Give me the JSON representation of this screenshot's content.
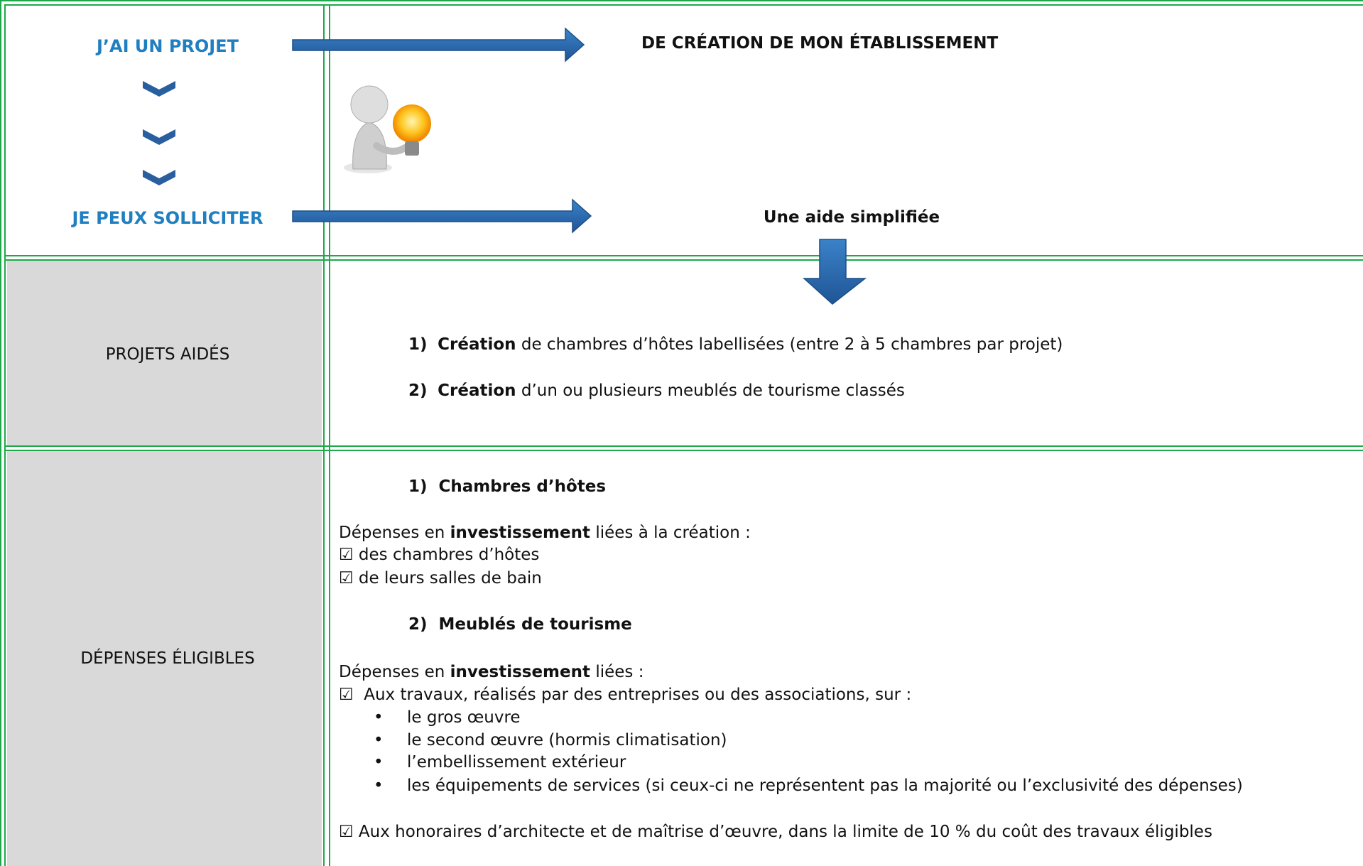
{
  "header": {
    "project_label": "J’AI UN PROJET",
    "project_text": "DE CRÉATION DE MON ÉTABLISSEMENT",
    "request_label": "JE PEUX SOLLICITER",
    "request_text": "Une aide simplifiée"
  },
  "projets_aides": {
    "label": "PROJETS AIDÉS",
    "items": [
      {
        "number": "1)",
        "keyword": "Création",
        "text": "de chambres d’hôtes labellisées (entre 2 à 5 chambres par projet)"
      },
      {
        "number": "2)",
        "keyword": "Création",
        "text": "d’un ou plusieurs meublés de tourisme classés"
      }
    ]
  },
  "depenses_eligibles": {
    "label": "DÉPENSES ÉLIGIBLES",
    "sections": [
      {
        "number": "1)",
        "title": "Chambres d’hôtes",
        "intro_start": "Dépenses en",
        "intro_bold": "investissement",
        "intro_end": "liées à la création :",
        "checks": [
          "☑ des chambres d’hôtes",
          "☑ de leurs salles de bain"
        ]
      },
      {
        "number": "2)",
        "title": "Meublés de tourisme",
        "intro_start": "Dépenses en",
        "intro_bold": "investissement",
        "intro_end": "liées :",
        "checks": [
          "☑  Aux travaux, réalisés par des entreprises ou des associations, sur :",
          "☑ Aux honoraires d’architecte et de maîtrise d’œuvre, dans la limite de 10 % du coût des travaux éligibles"
        ],
        "bullets": [
          "le gros œuvre",
          "le second œuvre (hormis climatisation)",
          "l’embellissement extérieur",
          "les équipements de services (si ceux-ci ne représentent pas la majorité ou l’exclusivité des dépenses)"
        ]
      }
    ]
  }
}
